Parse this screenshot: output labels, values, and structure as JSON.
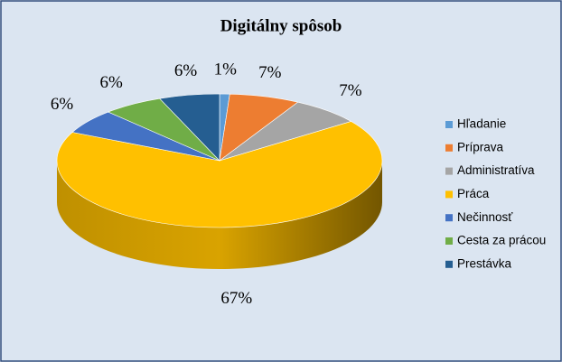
{
  "chart_data": {
    "type": "pie",
    "title": "Digitálny spôsob",
    "categories": [
      "Hľadanie",
      "Príprava",
      "Administratíva",
      "Práca",
      "Nečinnosť",
      "Cesta za prácou",
      "Prestávka"
    ],
    "values": [
      1,
      7,
      7,
      67,
      6,
      6,
      6
    ],
    "value_labels": [
      "1%",
      "7%",
      "7%",
      "67%",
      "6%",
      "6%",
      "6%"
    ],
    "colors": [
      "#5b9bd5",
      "#ed7d31",
      "#a5a5a5",
      "#ffc000",
      "#4472c4",
      "#70ad47",
      "#255e91"
    ],
    "legend": "right"
  }
}
